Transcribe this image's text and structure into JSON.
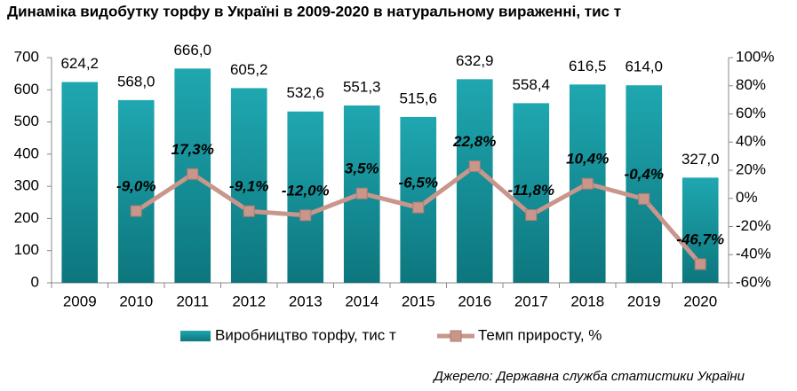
{
  "chart_data": {
    "type": "bar",
    "title": "Динаміка видобутку торфу в Україні в 2009-2020 в натуральному вираженні, тис т",
    "source": "Джерело: Державна служба статистики України",
    "categories": [
      "2009",
      "2010",
      "2011",
      "2012",
      "2013",
      "2014",
      "2015",
      "2016",
      "2017",
      "2018",
      "2019",
      "2020"
    ],
    "series": [
      {
        "name": "Виробництво торфу, тис т",
        "type": "bar",
        "color": "#14919a",
        "values": [
          624.2,
          568.0,
          666.0,
          605.2,
          532.6,
          551.3,
          515.6,
          632.9,
          558.4,
          616.5,
          614.0,
          327.0
        ],
        "value_labels": [
          "624,2",
          "568,0",
          "666,0",
          "605,2",
          "532,6",
          "551,3",
          "515,6",
          "632,9",
          "558,4",
          "616,5",
          "614,0",
          "327,0"
        ]
      },
      {
        "name": "Темп приросту, %",
        "type": "line",
        "axis": "y2",
        "color": "#c9968c",
        "values": [
          null,
          -9.0,
          17.3,
          -9.1,
          -12.0,
          3.5,
          -6.5,
          22.8,
          -11.8,
          10.4,
          -0.4,
          -46.7
        ],
        "value_labels": [
          null,
          "-9,0%",
          "17,3%",
          "-9,1%",
          "-12,0%",
          "3,5%",
          "-6,5%",
          "22,8%",
          "-11,8%",
          "10,4%",
          "-0,4%",
          "-46,7%"
        ]
      }
    ],
    "ylim": [
      0,
      700
    ],
    "yticks": [
      0,
      100,
      200,
      300,
      400,
      500,
      600,
      700
    ],
    "y2lim": [
      -60,
      100
    ],
    "y2ticks": [
      {
        "value": -60,
        "label": "-60%"
      },
      {
        "value": -40,
        "label": "-40%"
      },
      {
        "value": -20,
        "label": "-20%"
      },
      {
        "value": 0,
        "label": "0%"
      },
      {
        "value": 20,
        "label": "20%"
      },
      {
        "value": 40,
        "label": "40%"
      },
      {
        "value": 60,
        "label": "60%"
      },
      {
        "value": 80,
        "label": "80%"
      },
      {
        "value": 100,
        "label": "100%"
      }
    ],
    "legend": "bottom"
  }
}
